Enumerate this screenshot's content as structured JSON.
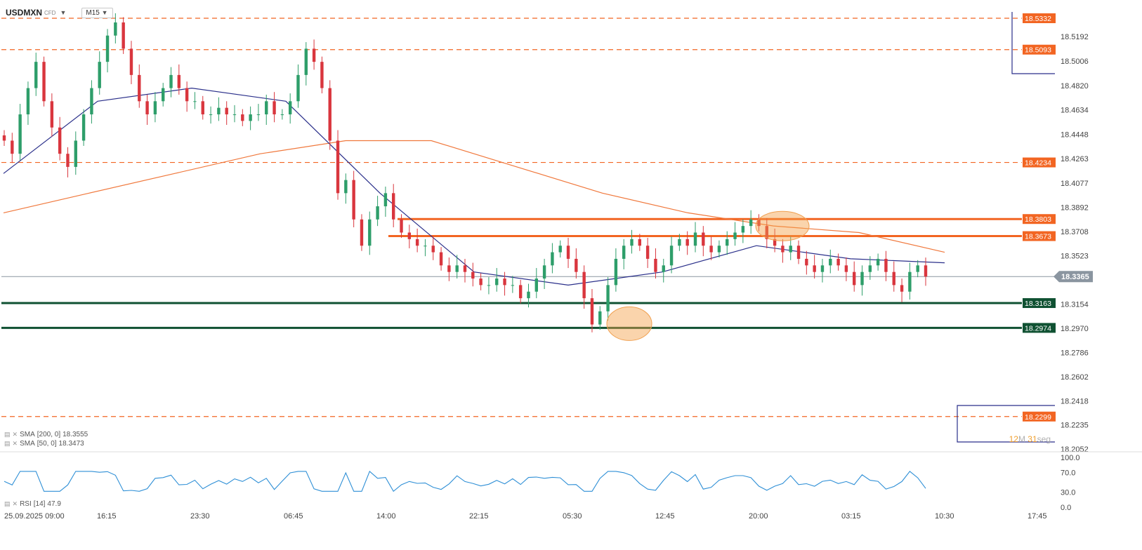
{
  "toolbar": {
    "symbol": "USDMXN",
    "instrument_type": "CFD",
    "timeframe": "M15",
    "dropdown_icon": "caret-down-icon"
  },
  "indicators": [
    {
      "label": "SMA",
      "params": "[200, 0]",
      "value": "18.3555",
      "color": "#f0783c"
    },
    {
      "label": "SMA",
      "params": "[50, 0]",
      "value": "18.3473",
      "color": "#2a2f8a"
    }
  ],
  "rsi": {
    "label": "RSI",
    "params": "[14]",
    "value": "47.9",
    "color": "#2e8fd6"
  },
  "countdown": {
    "minutes": "12",
    "minutes_unit": "M",
    "seconds": "31",
    "seconds_unit": "seg"
  },
  "colors": {
    "up": "#2e9e6a",
    "down": "#d9363e",
    "resistance": "#f26522",
    "support": "#0f5132",
    "dashed": "#f26522",
    "current_price": "#8a95a0"
  },
  "chart_data": [
    {
      "type": "candlestick",
      "symbol": "USDMXN",
      "timeframe": "M15",
      "ylim": [
        18.2052,
        18.5332
      ],
      "y_ticks": [
        "18.5192",
        "18.5006",
        "18.4820",
        "18.4634",
        "18.4448",
        "18.4263",
        "18.4077",
        "18.3892",
        "18.3708",
        "18.3523",
        "18.3154",
        "18.2970",
        "18.2786",
        "18.2602",
        "18.2418",
        "18.2235",
        "18.2052"
      ],
      "x_ticks": [
        "25.09.2025  09:00",
        "16:15",
        "23:30",
        "06:45",
        "14:00",
        "22:15",
        "05:30",
        "12:45",
        "20:00",
        "03:15",
        "10:30",
        "17:45"
      ],
      "price_labels": [
        {
          "value": "18.5332",
          "style": "dashed"
        },
        {
          "value": "18.5093",
          "style": "dashed"
        },
        {
          "value": "18.4234",
          "style": "dashed"
        },
        {
          "value": "18.3803",
          "style": "resistance"
        },
        {
          "value": "18.3673",
          "style": "resistance"
        },
        {
          "value": "18.3365",
          "style": "current"
        },
        {
          "value": "18.3163",
          "style": "support"
        },
        {
          "value": "18.2974",
          "style": "support"
        },
        {
          "value": "18.2299",
          "style": "dashed"
        }
      ],
      "highlights": [
        {
          "label": "double bottom area",
          "center": [
            18.2974
          ]
        },
        {
          "label": "resistance test",
          "center": [
            18.3803
          ]
        }
      ],
      "closes": [
        18.44,
        18.43,
        18.46,
        18.48,
        18.5,
        18.47,
        18.45,
        18.43,
        18.42,
        18.44,
        18.46,
        18.48,
        18.5,
        18.52,
        18.53,
        18.51,
        18.49,
        18.47,
        18.46,
        18.47,
        18.48,
        18.49,
        18.48,
        18.47,
        18.47,
        18.46,
        18.46,
        18.465,
        18.46,
        18.46,
        18.455,
        18.46,
        18.46,
        18.47,
        18.46,
        18.46,
        18.47,
        18.49,
        18.51,
        18.5,
        18.48,
        18.44,
        18.4,
        18.41,
        18.38,
        18.36,
        18.38,
        18.39,
        18.4,
        18.38,
        18.37,
        18.365,
        18.36,
        18.36,
        18.355,
        18.345,
        18.34,
        18.345,
        18.34,
        18.335,
        18.33,
        18.33,
        18.335,
        18.33,
        18.33,
        18.32,
        18.325,
        18.335,
        18.345,
        18.355,
        18.36,
        18.35,
        18.34,
        18.32,
        18.3,
        18.31,
        18.33,
        18.35,
        18.36,
        18.365,
        18.36,
        18.35,
        18.34,
        18.345,
        18.36,
        18.365,
        18.36,
        18.37,
        18.36,
        18.355,
        18.36,
        18.365,
        18.37,
        18.375,
        18.38,
        18.375,
        18.365,
        18.36,
        18.355,
        18.36,
        18.35,
        18.345,
        18.34,
        18.345,
        18.35,
        18.345,
        18.34,
        18.33,
        18.34,
        18.345,
        18.35,
        18.34,
        18.33,
        18.325,
        18.34,
        18.345,
        18.3365
      ],
      "sma_200": [
        18.385,
        18.4,
        18.415,
        18.43,
        18.44,
        18.44,
        18.42,
        18.4,
        18.385,
        18.375,
        18.37,
        18.355
      ],
      "sma_50": [
        18.415,
        18.47,
        18.48,
        18.47,
        18.4,
        18.34,
        18.33,
        18.34,
        18.36,
        18.35,
        18.347
      ],
      "rsi_range": [
        0,
        100
      ],
      "rsi_ticks": [
        "100.0",
        "70.0",
        "30.0",
        "0.0"
      ]
    }
  ]
}
